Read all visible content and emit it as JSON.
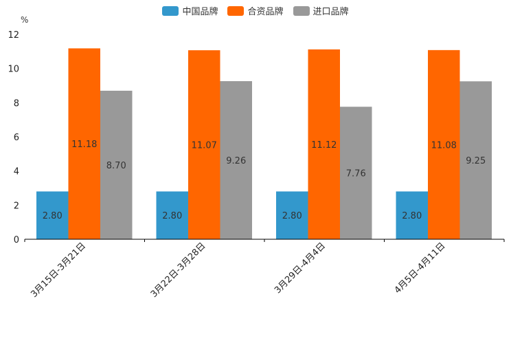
{
  "chart_data": {
    "type": "bar",
    "unit_label": "%",
    "categories": [
      "3月15日-3月21日",
      "3月22日-3月28日",
      "3月29日-4月4日",
      "4月5日-4月11日"
    ],
    "series": [
      {
        "name": "中国品牌",
        "color": "#3398cc",
        "values": [
          2.8,
          2.8,
          2.8,
          2.8
        ],
        "labels": [
          "2.80",
          "2.80",
          "2.80",
          "2.80"
        ]
      },
      {
        "name": "合资品牌",
        "color": "#ff6600",
        "values": [
          11.18,
          11.07,
          11.12,
          11.08
        ],
        "labels": [
          "11.18",
          "11.07",
          "11.12",
          "11.08"
        ]
      },
      {
        "name": "进口品牌",
        "color": "#999999",
        "values": [
          8.7,
          9.26,
          7.76,
          9.25
        ],
        "labels": [
          "8.70",
          "9.26",
          "7.76",
          "9.25"
        ]
      }
    ],
    "ylim": [
      0,
      12
    ],
    "yticks": [
      0,
      2,
      4,
      6,
      8,
      10,
      12
    ],
    "legend_position": "top-center",
    "grid": false
  }
}
